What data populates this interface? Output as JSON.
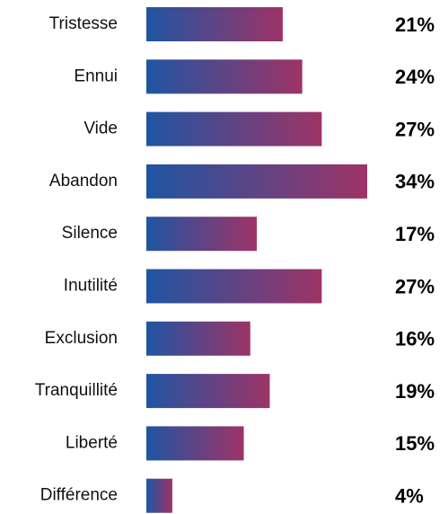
{
  "chart_data": {
    "type": "bar",
    "orientation": "horizontal",
    "categories": [
      "Tristesse",
      "Ennui",
      "Vide",
      "Abandon",
      "Silence",
      "Inutilité",
      "Exclusion",
      "Tranquillité",
      "Liberté",
      "Différence"
    ],
    "values": [
      21,
      24,
      27,
      34,
      17,
      27,
      16,
      19,
      15,
      4
    ],
    "value_labels": [
      "21%",
      "24%",
      "27%",
      "34%",
      "17%",
      "27%",
      "16%",
      "19%",
      "15%",
      "4%"
    ],
    "color": [
      "#1f55a3",
      "#9e3366"
    ]
  }
}
